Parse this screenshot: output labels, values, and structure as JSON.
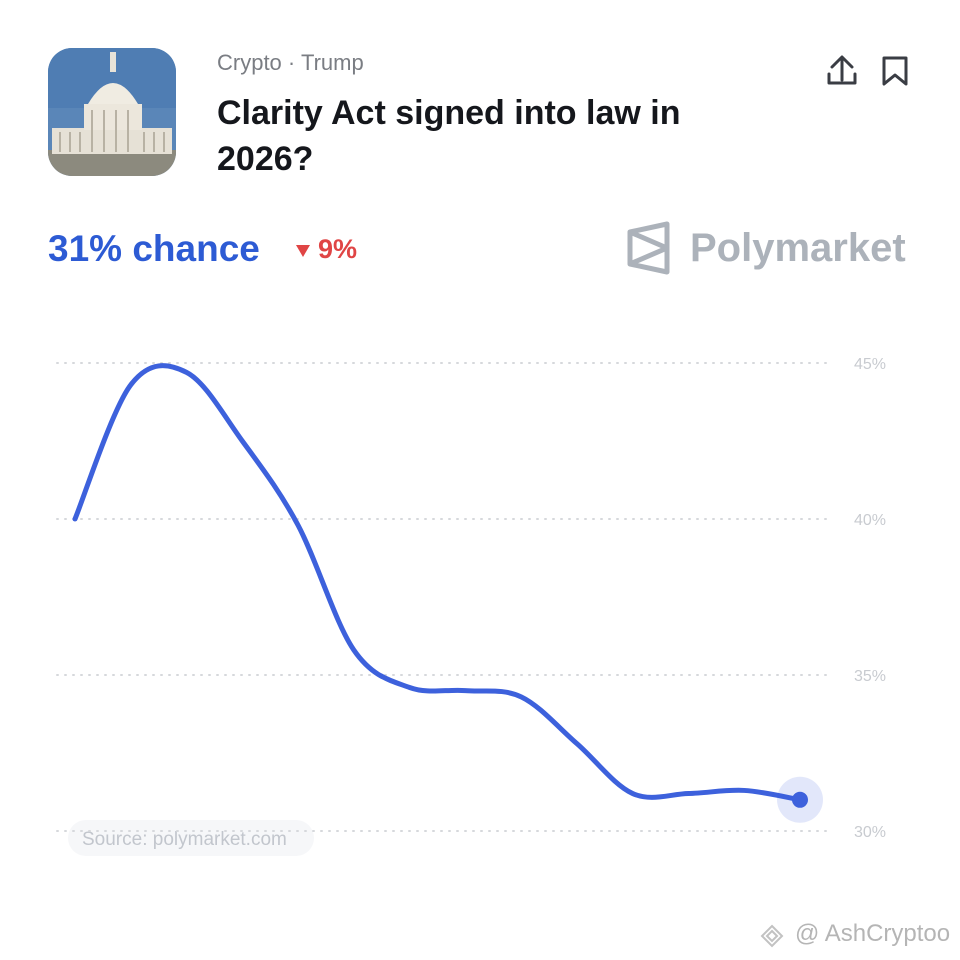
{
  "header": {
    "category": "Crypto · Trump",
    "title": "Clarity Act signed into law in 2026?"
  },
  "odds": {
    "chance": "31% chance",
    "change": "9%"
  },
  "brand": "Polymarket",
  "source": "Source: polymarket.com",
  "watermark": "@ AshCryptoo",
  "chart_data": {
    "type": "line",
    "categories": [
      null,
      null,
      null,
      null,
      null,
      null,
      null,
      null,
      null,
      null,
      null,
      null,
      null,
      null
    ],
    "series": [
      {
        "color": "#3d61dc",
        "values": [
          40,
          44.3,
          44.7,
          42.5,
          39.8,
          35.8,
          34.6,
          34.5,
          34.3,
          32.8,
          31.2,
          31.2,
          31.3,
          31
        ]
      }
    ],
    "ylim": [
      30,
      45
    ],
    "yticks": [
      {
        "value": 30,
        "label": "30%"
      },
      {
        "value": 35,
        "label": "35%"
      },
      {
        "value": 40,
        "label": "40%"
      },
      {
        "value": 45,
        "label": "45%"
      }
    ],
    "grid": true
  }
}
